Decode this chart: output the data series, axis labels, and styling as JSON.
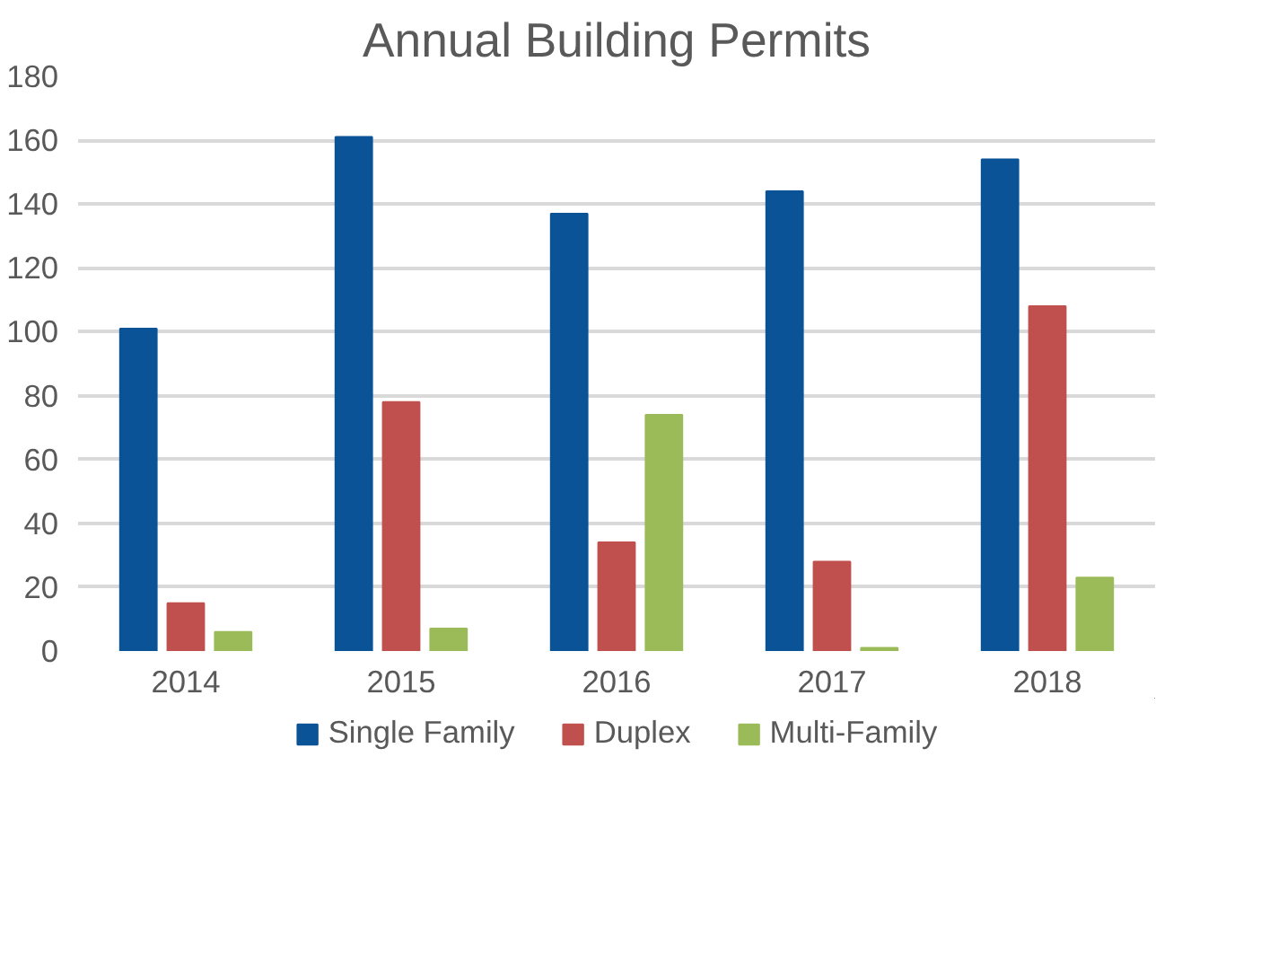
{
  "chart_data": {
    "type": "bar",
    "title": "Annual Building Permits",
    "categories": [
      "2014",
      "2015",
      "2016",
      "2017",
      "2018"
    ],
    "series": [
      {
        "name": "Single Family",
        "color": "#0a5396",
        "values": [
          101,
          161,
          137,
          144,
          154
        ]
      },
      {
        "name": "Duplex",
        "color": "#c0504d",
        "values": [
          15,
          78,
          34,
          28,
          108
        ]
      },
      {
        "name": "Multi-Family",
        "color": "#9bbb59",
        "values": [
          6,
          7,
          74,
          1,
          23
        ]
      }
    ],
    "ylim": [
      0,
      180
    ],
    "yticks": [
      0,
      20,
      40,
      60,
      80,
      100,
      120,
      140,
      160,
      180
    ],
    "grid": "y",
    "legend": "bottom"
  }
}
